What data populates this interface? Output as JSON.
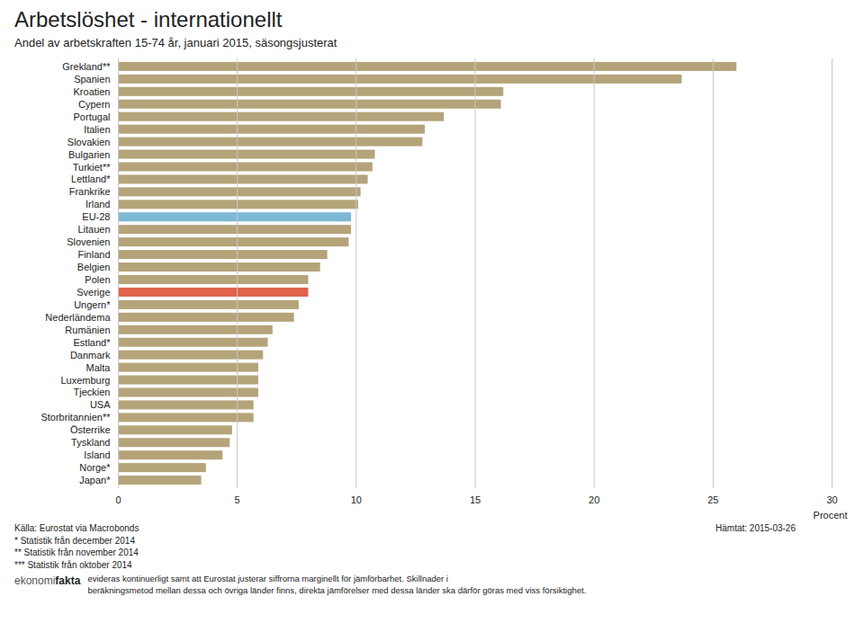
{
  "chart_data": {
    "type": "bar",
    "orientation": "horizontal",
    "title": "Arbetslöshet - internationellt",
    "subtitle": "Andel av arbetskraften 15-74 år, januari 2015, säsongsjusterat",
    "xlabel": "Procent",
    "source": "Källa: Eurostat via Macrobonds\n* Statistik från december 2014\n** Statistik från november 2014\n*** Statistik från oktober 2014",
    "retrieved": "Hämtat: 2015-03-26",
    "logo": [
      "ekonomi",
      "fakta"
    ],
    "note": "evideras kontinuerligt samt att Eurostat justerar siffrorna marginellt för jämförbarhet. Skillnader i\nberäkningsmetod mellan dessa och övriga länder finns, direkta jämförelser med dessa länder ska därför göras med viss försiktighet.",
    "categories": [
      "Grekland**",
      "Spanien",
      "Kroatien",
      "Cypern",
      "Portugal",
      "Italien",
      "Slovakien",
      "Bulgarien",
      "Turkiet**",
      "Lettland*",
      "Frankrike",
      "Irland",
      "EU-28",
      "Litauen",
      "Slovenien",
      "Finland",
      "Belgien",
      "Polen",
      "Sverige",
      "Ungern*",
      "Nederländema",
      "Rumänien",
      "Estland*",
      "Danmark",
      "Malta",
      "Luxemburg",
      "Tjeckien",
      "USA",
      "Storbritannien**",
      "Österrike",
      "Tyskland",
      "Island",
      "Norge*",
      "Japan*"
    ],
    "values": [
      26.0,
      23.7,
      16.2,
      16.1,
      13.7,
      12.9,
      12.8,
      10.8,
      10.7,
      10.5,
      10.2,
      10.1,
      9.8,
      9.8,
      9.7,
      8.8,
      8.5,
      8.0,
      8.0,
      7.6,
      7.4,
      6.5,
      6.3,
      6.1,
      5.9,
      5.9,
      5.9,
      5.7,
      5.7,
      4.8,
      4.7,
      4.4,
      3.7,
      3.5
    ],
    "colors": [
      "#b5a47a",
      "#b5a47a",
      "#b5a47a",
      "#b5a47a",
      "#b5a47a",
      "#b5a47a",
      "#b5a47a",
      "#b5a47a",
      "#b5a47a",
      "#b5a47a",
      "#b5a47a",
      "#b5a47a",
      "#7db8d4",
      "#b5a47a",
      "#b5a47a",
      "#b5a47a",
      "#b5a47a",
      "#b5a47a",
      "#e0634a",
      "#b5a47a",
      "#b5a47a",
      "#b5a47a",
      "#b5a47a",
      "#b5a47a",
      "#b5a47a",
      "#b5a47a",
      "#b5a47a",
      "#b5a47a",
      "#b5a47a",
      "#b5a47a",
      "#b5a47a",
      "#b5a47a",
      "#b5a47a",
      "#b5a47a"
    ],
    "xlim": [
      0,
      30
    ],
    "xticks": [
      0,
      5,
      10,
      15,
      20,
      25,
      30
    ],
    "grid": true
  }
}
